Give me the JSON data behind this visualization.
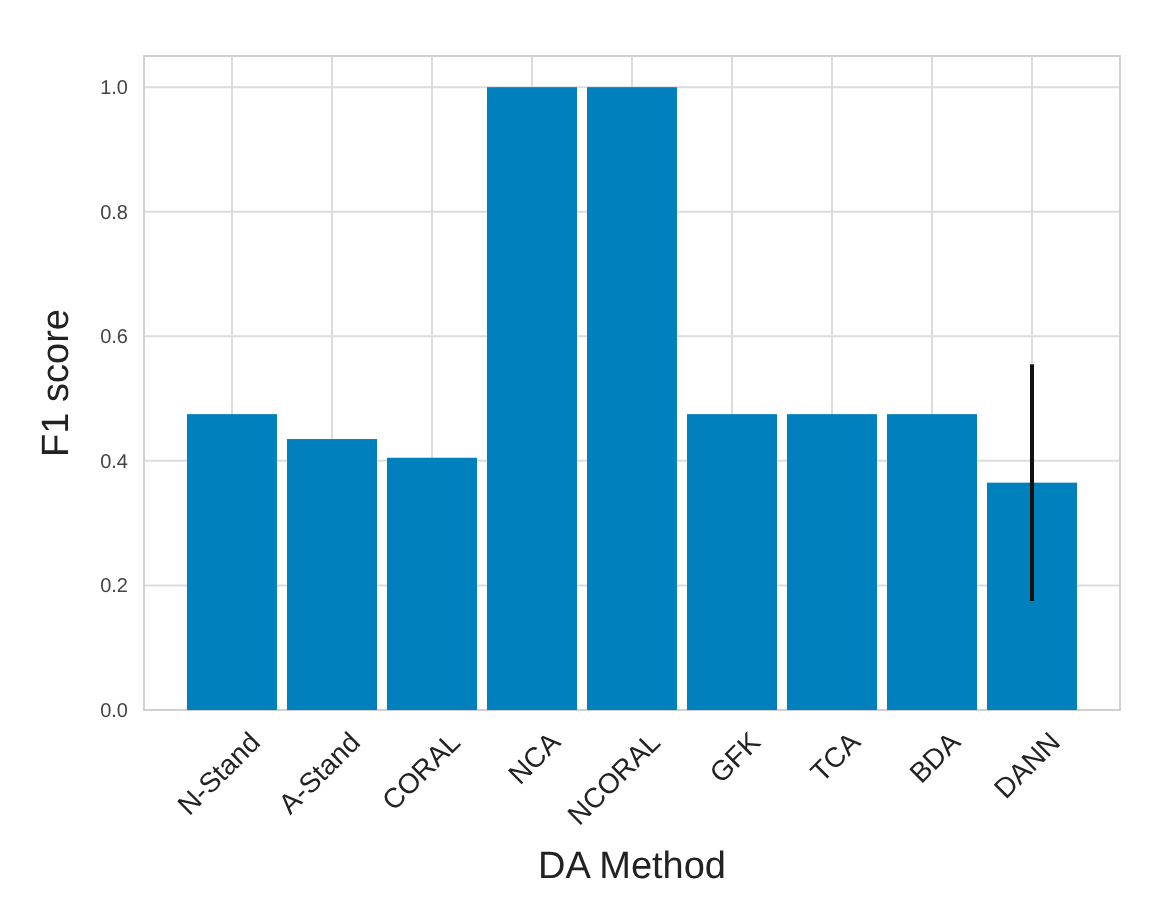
{
  "chart_data": {
    "type": "bar",
    "xlabel": "DA Method",
    "ylabel": "F1 score",
    "categories": [
      "N-Stand",
      "A-Stand",
      "CORAL",
      "NCA",
      "NCORAL",
      "GFK",
      "TCA",
      "BDA",
      "DANN"
    ],
    "values": [
      0.475,
      0.435,
      0.405,
      1.0,
      1.0,
      0.475,
      0.475,
      0.475,
      0.365
    ],
    "errors": [
      null,
      null,
      null,
      null,
      null,
      null,
      null,
      null,
      0.19
    ],
    "color": "#0080bd",
    "ylim": [
      0,
      1.05
    ],
    "yticks": [
      {
        "value": 0,
        "label": "0.0"
      },
      {
        "value": 0.2,
        "label": "0.2"
      },
      {
        "value": 0.4,
        "label": "0.4"
      },
      {
        "value": 0.6,
        "label": "0.6"
      },
      {
        "value": 0.8,
        "label": "0.8"
      },
      {
        "value": 1,
        "label": "1.0"
      }
    ],
    "grid": true
  }
}
